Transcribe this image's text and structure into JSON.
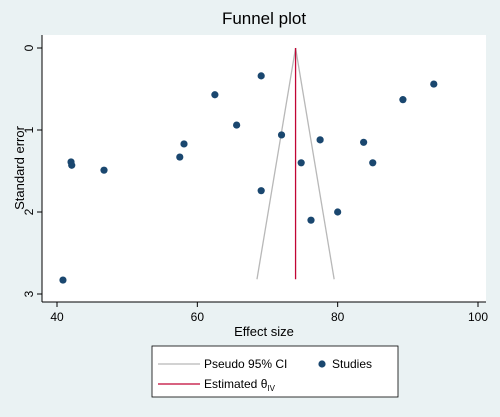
{
  "chart_data": {
    "type": "scatter",
    "title": "Funnel plot",
    "x_label": "Effect size",
    "y_label": "Standard error",
    "xlim": [
      40,
      100
    ],
    "xticks": [
      40,
      60,
      80,
      100
    ],
    "ylim": [
      0,
      3
    ],
    "yticks": [
      0,
      1,
      2,
      3
    ],
    "y_reversed": true,
    "series": [
      {
        "name": "Studies",
        "color": "#1a476f",
        "x": [
          40.85,
          42.0,
          42.1,
          46.7,
          57.5,
          58.1,
          62.5,
          65.6,
          69.1,
          69.1,
          72.0,
          74.8,
          76.2,
          77.5,
          80.0,
          83.7,
          85.0,
          89.3,
          93.7
        ],
        "values": [
          2.83,
          1.39,
          1.43,
          1.49,
          1.33,
          1.17,
          0.57,
          0.94,
          0.34,
          1.74,
          1.06,
          1.4,
          2.1,
          1.12,
          2.0,
          1.15,
          1.4,
          0.63,
          0.44
        ]
      }
    ],
    "lines": [
      {
        "name": "Pseudo 95% CI",
        "color": "#b8b8b8",
        "segments": [
          {
            "x": [
              74,
              68.5
            ],
            "values": [
              0,
              2.82
            ]
          },
          {
            "x": [
              74,
              79.5
            ],
            "values": [
              0,
              2.82
            ]
          }
        ]
      },
      {
        "name": "Estimated θ",
        "name_subscript": "IV",
        "color": "#c10534",
        "segments": [
          {
            "x": [
              74,
              74
            ],
            "values": [
              0,
              2.82
            ]
          }
        ]
      }
    ]
  }
}
